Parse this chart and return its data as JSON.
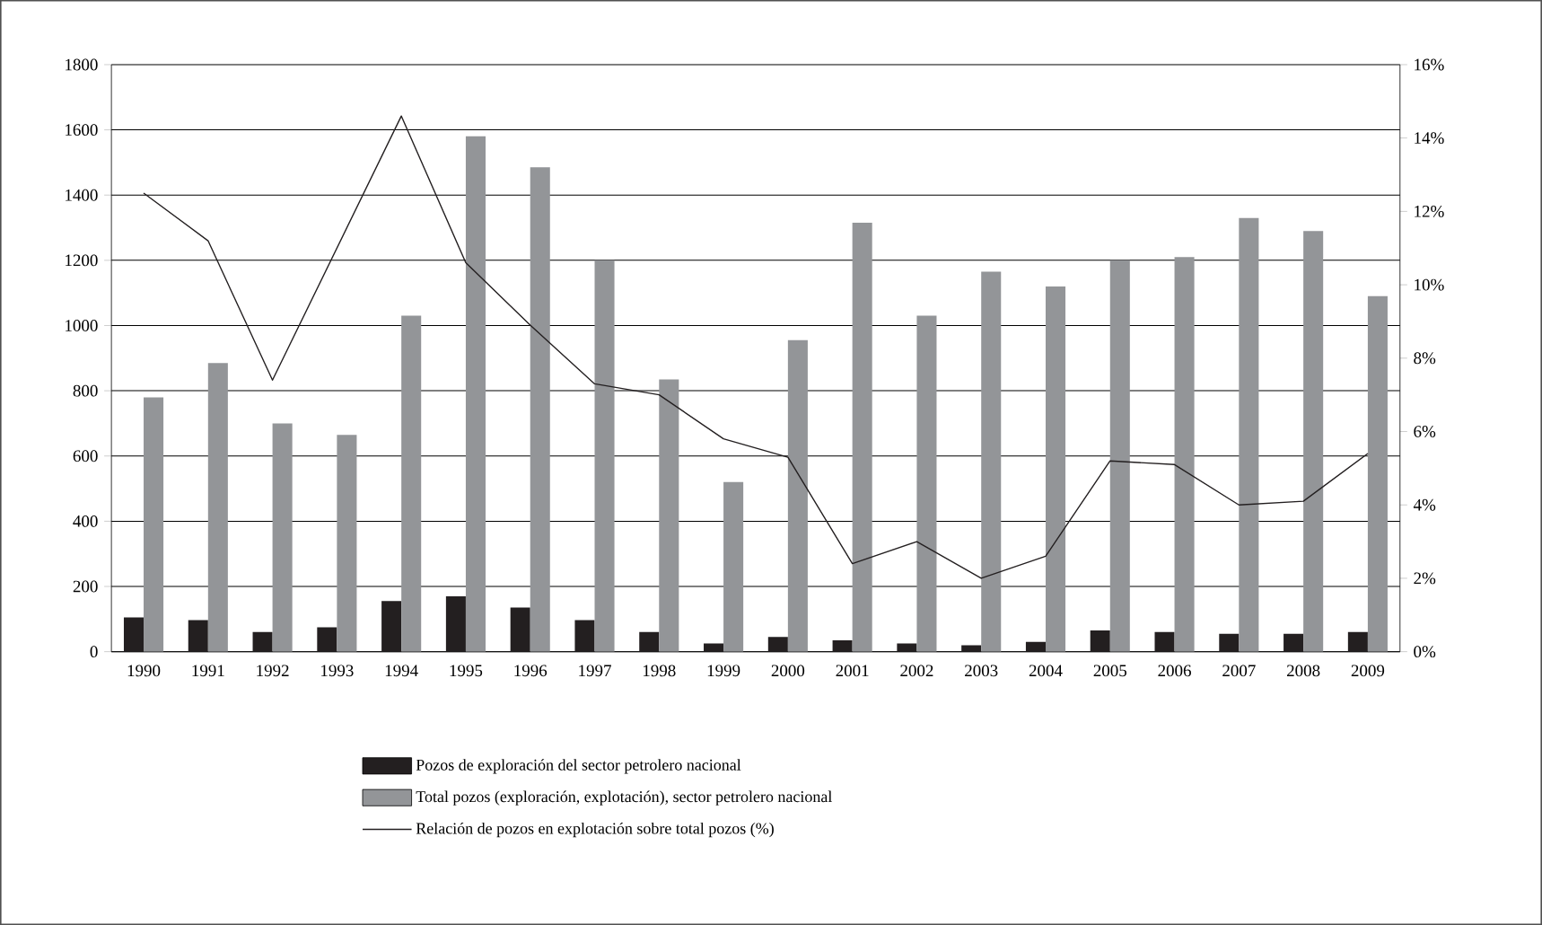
{
  "chart_data": {
    "type": "bar",
    "categories": [
      "1990",
      "1991",
      "1992",
      "1993",
      "1994",
      "1995",
      "1996",
      "1997",
      "1998",
      "1999",
      "2000",
      "2001",
      "2002",
      "2003",
      "2004",
      "2005",
      "2006",
      "2007",
      "2008",
      "2009"
    ],
    "series": [
      {
        "name": "Pozos de exploración del sector petrolero nacional",
        "color": "#231f20",
        "values": [
          105,
          97,
          60,
          75,
          155,
          170,
          135,
          97,
          60,
          25,
          45,
          35,
          25,
          20,
          30,
          65,
          60,
          55,
          55,
          60
        ]
      },
      {
        "name": "Total pozos (exploración, explotación), sector petrolero nacional",
        "color": "#939598",
        "values": [
          780,
          885,
          700,
          665,
          1030,
          1580,
          1485,
          1200,
          835,
          520,
          955,
          1315,
          1030,
          1165,
          1120,
          1200,
          1210,
          1330,
          1290,
          1090
        ]
      },
      {
        "name": "Relación de pozos en explotación sobre total pozos (%)",
        "type": "line",
        "axis": "y2",
        "color": "#231f20",
        "values": [
          12.5,
          11.2,
          7.4,
          11.0,
          14.6,
          10.6,
          8.9,
          7.3,
          7.0,
          5.8,
          5.3,
          2.4,
          3.0,
          2.0,
          2.6,
          5.2,
          5.1,
          4.0,
          4.1,
          5.4
        ]
      }
    ],
    "ylim": [
      0,
      1800
    ],
    "yticks": [
      0,
      200,
      400,
      600,
      800,
      1000,
      1200,
      1400,
      1600,
      1800
    ],
    "y2lim": [
      0,
      16
    ],
    "y2ticks": [
      {
        "value": 0,
        "label": "0%"
      },
      {
        "value": 2,
        "label": "2%"
      },
      {
        "value": 4,
        "label": "4%"
      },
      {
        "value": 6,
        "label": "6%"
      },
      {
        "value": 8,
        "label": "8%"
      },
      {
        "value": 10,
        "label": "10%"
      },
      {
        "value": 12,
        "label": "12%"
      },
      {
        "value": 14,
        "label": "14%"
      },
      {
        "value": 16,
        "label": "16%"
      }
    ],
    "grid": "y",
    "legend": "bottom"
  }
}
